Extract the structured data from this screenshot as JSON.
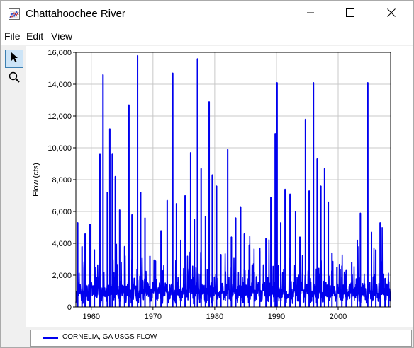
{
  "window": {
    "title": "Chattahoochee River",
    "icon": "chart-app-icon",
    "controls": [
      "minimize-icon",
      "maximize-icon",
      "close-icon"
    ]
  },
  "menu": {
    "items": [
      "File",
      "Edit",
      "View"
    ]
  },
  "toolbar": {
    "tools": [
      {
        "icon": "pointer-arrow-icon",
        "selected": true
      },
      {
        "icon": "zoom-magnifier-icon",
        "selected": false
      }
    ]
  },
  "colors": {
    "series": "#0000ee",
    "grid": "#c8c8c8",
    "selected_tool_bg": "#cce4f7"
  },
  "legend": {
    "label": "CORNELIA, GA USGS FLOW"
  },
  "chart_data": {
    "type": "line",
    "ylabel": "Flow (cfs)",
    "xlabel": "",
    "ylim": [
      0,
      16000
    ],
    "xlim": [
      1957.5,
      2008.5
    ],
    "y_ticks": [
      0,
      2000,
      4000,
      6000,
      8000,
      10000,
      12000,
      14000,
      16000
    ],
    "y_tick_labels": [
      "0",
      "2,000",
      "4,000",
      "6,000",
      "8,000",
      "10,000",
      "12,000",
      "14,000",
      "16,000"
    ],
    "x_ticks": [
      1960,
      1970,
      1980,
      1990,
      2000
    ],
    "x_tick_labels": [
      "1960",
      "1970",
      "1980",
      "1990",
      "2000"
    ],
    "grid": true,
    "legend_position": "bottom",
    "series": [
      {
        "name": "CORNELIA, GA USGS FLOW",
        "peaks": [
          {
            "x": 1957.8,
            "y": 5300
          },
          {
            "x": 1958.5,
            "y": 3800
          },
          {
            "x": 1959.0,
            "y": 4600
          },
          {
            "x": 1959.8,
            "y": 5200
          },
          {
            "x": 1960.5,
            "y": 3600
          },
          {
            "x": 1961.4,
            "y": 9600
          },
          {
            "x": 1961.9,
            "y": 14600
          },
          {
            "x": 1962.6,
            "y": 7200
          },
          {
            "x": 1963.0,
            "y": 11200
          },
          {
            "x": 1963.4,
            "y": 9600
          },
          {
            "x": 1963.9,
            "y": 8200
          },
          {
            "x": 1964.6,
            "y": 6100
          },
          {
            "x": 1965.4,
            "y": 3800
          },
          {
            "x": 1966.1,
            "y": 12700
          },
          {
            "x": 1966.6,
            "y": 5800
          },
          {
            "x": 1967.5,
            "y": 15800
          },
          {
            "x": 1968.0,
            "y": 7200
          },
          {
            "x": 1968.7,
            "y": 5600
          },
          {
            "x": 1969.5,
            "y": 3200
          },
          {
            "x": 1970.4,
            "y": 2900
          },
          {
            "x": 1971.3,
            "y": 4800
          },
          {
            "x": 1972.3,
            "y": 6700
          },
          {
            "x": 1973.2,
            "y": 14700
          },
          {
            "x": 1973.8,
            "y": 6500
          },
          {
            "x": 1974.5,
            "y": 4200
          },
          {
            "x": 1975.2,
            "y": 7000
          },
          {
            "x": 1976.1,
            "y": 9700
          },
          {
            "x": 1976.7,
            "y": 5500
          },
          {
            "x": 1977.2,
            "y": 15600
          },
          {
            "x": 1977.8,
            "y": 8700
          },
          {
            "x": 1978.5,
            "y": 5700
          },
          {
            "x": 1979.1,
            "y": 12900
          },
          {
            "x": 1979.6,
            "y": 8300
          },
          {
            "x": 1980.3,
            "y": 7600
          },
          {
            "x": 1981.0,
            "y": 3300
          },
          {
            "x": 1982.1,
            "y": 9900
          },
          {
            "x": 1982.7,
            "y": 4400
          },
          {
            "x": 1983.4,
            "y": 5600
          },
          {
            "x": 1984.2,
            "y": 6300
          },
          {
            "x": 1984.8,
            "y": 4600
          },
          {
            "x": 1985.6,
            "y": 3900
          },
          {
            "x": 1986.4,
            "y": 2200
          },
          {
            "x": 1987.3,
            "y": 3500
          },
          {
            "x": 1988.3,
            "y": 4300
          },
          {
            "x": 1989.1,
            "y": 6900
          },
          {
            "x": 1989.8,
            "y": 10900
          },
          {
            "x": 1990.1,
            "y": 14100
          },
          {
            "x": 1990.7,
            "y": 5300
          },
          {
            "x": 1991.4,
            "y": 7400
          },
          {
            "x": 1992.2,
            "y": 7100
          },
          {
            "x": 1993.1,
            "y": 6000
          },
          {
            "x": 1993.8,
            "y": 4400
          },
          {
            "x": 1994.7,
            "y": 11800
          },
          {
            "x": 1995.3,
            "y": 7300
          },
          {
            "x": 1996.0,
            "y": 14100
          },
          {
            "x": 1996.6,
            "y": 9300
          },
          {
            "x": 1997.2,
            "y": 7600
          },
          {
            "x": 1997.8,
            "y": 8700
          },
          {
            "x": 1998.4,
            "y": 6600
          },
          {
            "x": 1999.0,
            "y": 3400
          },
          {
            "x": 1999.8,
            "y": 2500
          },
          {
            "x": 2000.6,
            "y": 1900
          },
          {
            "x": 2001.3,
            "y": 2300
          },
          {
            "x": 2002.2,
            "y": 2800
          },
          {
            "x": 2003.1,
            "y": 4200
          },
          {
            "x": 2003.6,
            "y": 5900
          },
          {
            "x": 2004.8,
            "y": 14100
          },
          {
            "x": 2005.4,
            "y": 4700
          },
          {
            "x": 2006.1,
            "y": 3600
          },
          {
            "x": 2006.8,
            "y": 5300
          },
          {
            "x": 2007.6,
            "y": 1800
          },
          {
            "x": 2008.2,
            "y": 1600
          }
        ]
      }
    ]
  }
}
